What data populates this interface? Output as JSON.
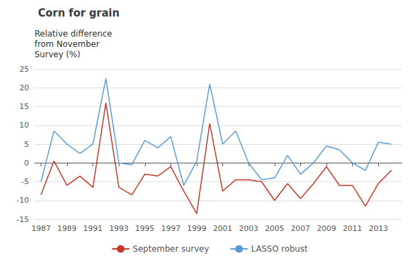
{
  "chart_data": {
    "type": "line",
    "title": "Corn for grain",
    "ylabel": "Relative difference\nfrom November\nSurvey (%)",
    "x": [
      1987,
      1988,
      1989,
      1990,
      1991,
      1992,
      1993,
      1994,
      1995,
      1996,
      1997,
      1998,
      1999,
      2000,
      2001,
      2002,
      2003,
      2004,
      2005,
      2006,
      2007,
      2008,
      2009,
      2010,
      2011,
      2012,
      2013,
      2014
    ],
    "series": [
      {
        "name": "September survey",
        "color": "#c0392b",
        "values": [
          -8.5,
          0.5,
          -6.0,
          -3.5,
          -6.5,
          16.0,
          -6.5,
          -8.5,
          -3.0,
          -3.5,
          -1.0,
          -7.5,
          -13.5,
          10.5,
          -7.5,
          -4.5,
          -4.5,
          -5.0,
          -10.0,
          -5.5,
          -9.5,
          -5.5,
          -1.0,
          -6.0,
          -6.0,
          -11.5,
          -5.5,
          -2.0
        ]
      },
      {
        "name": "LASSO robust",
        "color": "#5b9bd5",
        "values": [
          -5.0,
          8.5,
          5.0,
          2.5,
          5.0,
          22.5,
          0.0,
          -0.5,
          6.0,
          4.0,
          7.0,
          -6.0,
          0.5,
          21.0,
          5.0,
          8.5,
          0.0,
          -4.5,
          -4.0,
          2.0,
          -3.0,
          0.0,
          4.5,
          3.5,
          0.0,
          -2.0,
          5.5,
          5.0
        ]
      }
    ],
    "xlim": [
      1986.5,
      2014.8
    ],
    "xticks": [
      1987,
      1989,
      1991,
      1993,
      1995,
      1997,
      1999,
      2001,
      2003,
      2005,
      2007,
      2009,
      2011,
      2013
    ],
    "ylim": [
      -15,
      25
    ],
    "yticks": [
      -15,
      -10,
      -5,
      0,
      5,
      10,
      15,
      20,
      25
    ],
    "grid": true,
    "legend": "bottom",
    "marker": "none"
  }
}
